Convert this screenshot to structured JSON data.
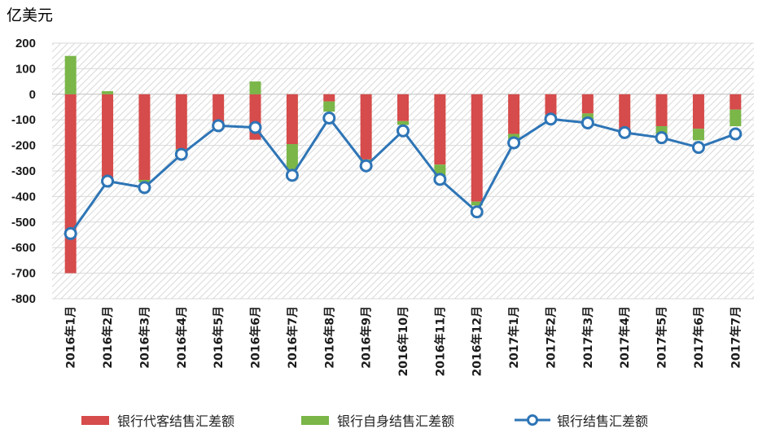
{
  "unit_label": "亿美元",
  "colors": {
    "agent": "#d64b4b",
    "self": "#7ab648",
    "line": "#2e75b6"
  },
  "chart_data": {
    "type": "bar",
    "stacked": true,
    "categories": [
      "2016年1月",
      "2016年2月",
      "2016年3月",
      "2016年4月",
      "2016年5月",
      "2016年6月",
      "2016年7月",
      "2016年8月",
      "2016年9月",
      "2016年10月",
      "2016年11月",
      "2016年12月",
      "2017年1月",
      "2017年2月",
      "2017年3月",
      "2017年4月",
      "2017年5月",
      "2017年6月",
      "2017年7月"
    ],
    "yticks": [
      "200",
      "100",
      "0",
      "-100",
      "-200",
      "-300",
      "-400",
      "-500",
      "-600",
      "-700",
      "-800"
    ],
    "ylim": [
      -800,
      200
    ],
    "grid": true,
    "legend_position": "bottom",
    "series": [
      {
        "name": "银行代客结售汇差额",
        "type": "bar",
        "values": [
          -700,
          -335,
          -335,
          -215,
          -115,
          -178,
          -195,
          -28,
          -255,
          -105,
          -275,
          -420,
          -155,
          -80,
          -75,
          -140,
          -125,
          -135,
          -60
        ]
      },
      {
        "name": "银行自身结售汇差额",
        "type": "bar",
        "values": [
          150,
          12,
          -10,
          -10,
          -5,
          50,
          -100,
          -40,
          -15,
          -15,
          -45,
          -15,
          -20,
          -5,
          -25,
          -5,
          -30,
          -45,
          -65
        ]
      },
      {
        "name": "银行结售汇差额",
        "type": "line",
        "values": [
          -545,
          -340,
          -365,
          -235,
          -123,
          -130,
          -317,
          -93,
          -280,
          -143,
          -333,
          -460,
          -190,
          -97,
          -112,
          -150,
          -170,
          -208,
          -155
        ]
      }
    ]
  }
}
